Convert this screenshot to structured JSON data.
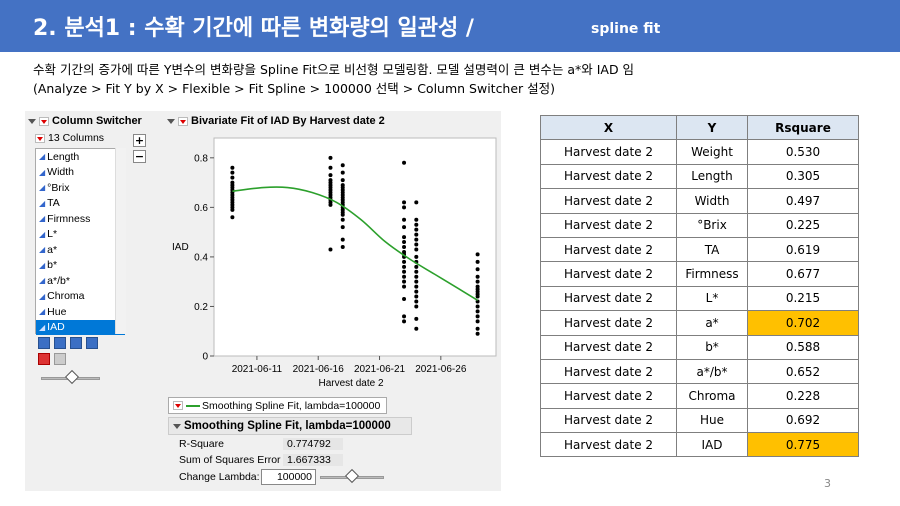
{
  "header": {
    "title": "2. 분석1 : 수확 기간에 따른 변화량의 일관성 /",
    "subtitle": "spline fit",
    "bg_color": "#4472c4"
  },
  "description": {
    "line1": "수확 기간의 증가에 따른 Y변수의 변화량을 Spline Fit으로 비선형 모델링함. 모델 설명력이 큰 변수는 a*와 IAD 임",
    "line2": "(Analyze  > Fit Y by X  > Flexible  > Fit Spline  > 100000 선택 > Column Switcher 설정)"
  },
  "jmp": {
    "column_switcher_title": "Column Switcher",
    "columns_count": "13 Columns",
    "columns": [
      "Length",
      "Width",
      "°Brix",
      "TA",
      "Firmness",
      "L*",
      "a*",
      "b*",
      "a*/b*",
      "Chroma",
      "Hue",
      "IAD"
    ],
    "selected_column": "IAD",
    "plot_title": "Bivariate Fit of IAD By Harvest date 2",
    "legend_label": "Smoothing Spline Fit, lambda=100000",
    "fit_title": "Smoothing Spline Fit, lambda=100000",
    "stats": [
      {
        "label": "R-Square",
        "value": "0.774792"
      },
      {
        "label": "Sum of Squares Error",
        "value": "1.667333"
      }
    ],
    "change_lambda_label": "Change Lambda:",
    "lambda_value": "100000",
    "spline_color": "#2ca02c"
  },
  "chart_data": {
    "type": "scatter",
    "title": "Bivariate Fit of IAD By Harvest date 2",
    "xlabel": "Harvest date 2",
    "ylabel": "IAD",
    "x_tick_labels": [
      "2021-06-11",
      "2021-06-16",
      "2021-06-21",
      "2021-06-26"
    ],
    "y_tick_labels": [
      "0",
      "0.2",
      "0.4",
      "0.6",
      "0.8"
    ],
    "ylim": [
      0,
      0.88
    ],
    "x_range_days": [
      0,
      23
    ],
    "x_tick_days": [
      3.5,
      8.5,
      13.5,
      18.5
    ],
    "groups": [
      {
        "day": 1.5,
        "y": [
          0.76,
          0.74,
          0.72,
          0.7,
          0.69,
          0.68,
          0.67,
          0.66,
          0.65,
          0.64,
          0.63,
          0.62,
          0.61,
          0.6,
          0.59,
          0.56
        ]
      },
      {
        "day": 9.5,
        "y": [
          0.8,
          0.76,
          0.73,
          0.71,
          0.7,
          0.69,
          0.68,
          0.67,
          0.66,
          0.65,
          0.64,
          0.63,
          0.62,
          0.61,
          0.43
        ]
      },
      {
        "day": 10.5,
        "y": [
          0.77,
          0.74,
          0.71,
          0.69,
          0.68,
          0.67,
          0.66,
          0.65,
          0.64,
          0.63,
          0.62,
          0.61,
          0.6,
          0.59,
          0.58,
          0.57,
          0.55,
          0.52,
          0.47,
          0.44
        ]
      },
      {
        "day": 15.5,
        "y": [
          0.78,
          0.62,
          0.6,
          0.55,
          0.52,
          0.48,
          0.46,
          0.44,
          0.42,
          0.41,
          0.4,
          0.38,
          0.36,
          0.34,
          0.32,
          0.3,
          0.28,
          0.23,
          0.16,
          0.14
        ]
      },
      {
        "day": 16.5,
        "y": [
          0.62,
          0.55,
          0.53,
          0.51,
          0.49,
          0.47,
          0.45,
          0.43,
          0.4,
          0.38,
          0.36,
          0.34,
          0.32,
          0.3,
          0.28,
          0.26,
          0.24,
          0.22,
          0.2,
          0.15,
          0.11
        ]
      },
      {
        "day": 21.5,
        "y": [
          0.41,
          0.38,
          0.35,
          0.32,
          0.3,
          0.28,
          0.27,
          0.26,
          0.25,
          0.24,
          0.22,
          0.2,
          0.18,
          0.16,
          0.14,
          0.11,
          0.09
        ]
      }
    ],
    "spline": {
      "x": [
        1.5,
        4,
        6,
        8,
        10,
        12,
        14,
        16,
        18,
        20,
        21.5
      ],
      "y": [
        0.665,
        0.68,
        0.68,
        0.66,
        0.62,
        0.55,
        0.46,
        0.39,
        0.33,
        0.27,
        0.225
      ]
    }
  },
  "table": {
    "headers": [
      "X",
      "Y",
      "Rsquare"
    ],
    "rows": [
      {
        "x": "Harvest date 2",
        "y": "Weight",
        "r": "0.530",
        "hl": false
      },
      {
        "x": "Harvest date 2",
        "y": "Length",
        "r": "0.305",
        "hl": false
      },
      {
        "x": "Harvest date 2",
        "y": "Width",
        "r": "0.497",
        "hl": false
      },
      {
        "x": "Harvest date 2",
        "y": "°Brix",
        "r": "0.225",
        "hl": false
      },
      {
        "x": "Harvest date 2",
        "y": "TA",
        "r": "0.619",
        "hl": false
      },
      {
        "x": "Harvest date 2",
        "y": "Firmness",
        "r": "0.677",
        "hl": false
      },
      {
        "x": "Harvest date 2",
        "y": "L*",
        "r": "0.215",
        "hl": false
      },
      {
        "x": "Harvest date 2",
        "y": "a*",
        "r": "0.702",
        "hl": true
      },
      {
        "x": "Harvest date 2",
        "y": "b*",
        "r": "0.588",
        "hl": false
      },
      {
        "x": "Harvest date 2",
        "y": "a*/b*",
        "r": "0.652",
        "hl": false
      },
      {
        "x": "Harvest date 2",
        "y": "Chroma",
        "r": "0.228",
        "hl": false
      },
      {
        "x": "Harvest date 2",
        "y": "Hue",
        "r": "0.692",
        "hl": false
      },
      {
        "x": "Harvest date 2",
        "y": "IAD",
        "r": "0.775",
        "hl": true
      }
    ],
    "highlight_color": "#ffc000"
  },
  "page_number": "3"
}
